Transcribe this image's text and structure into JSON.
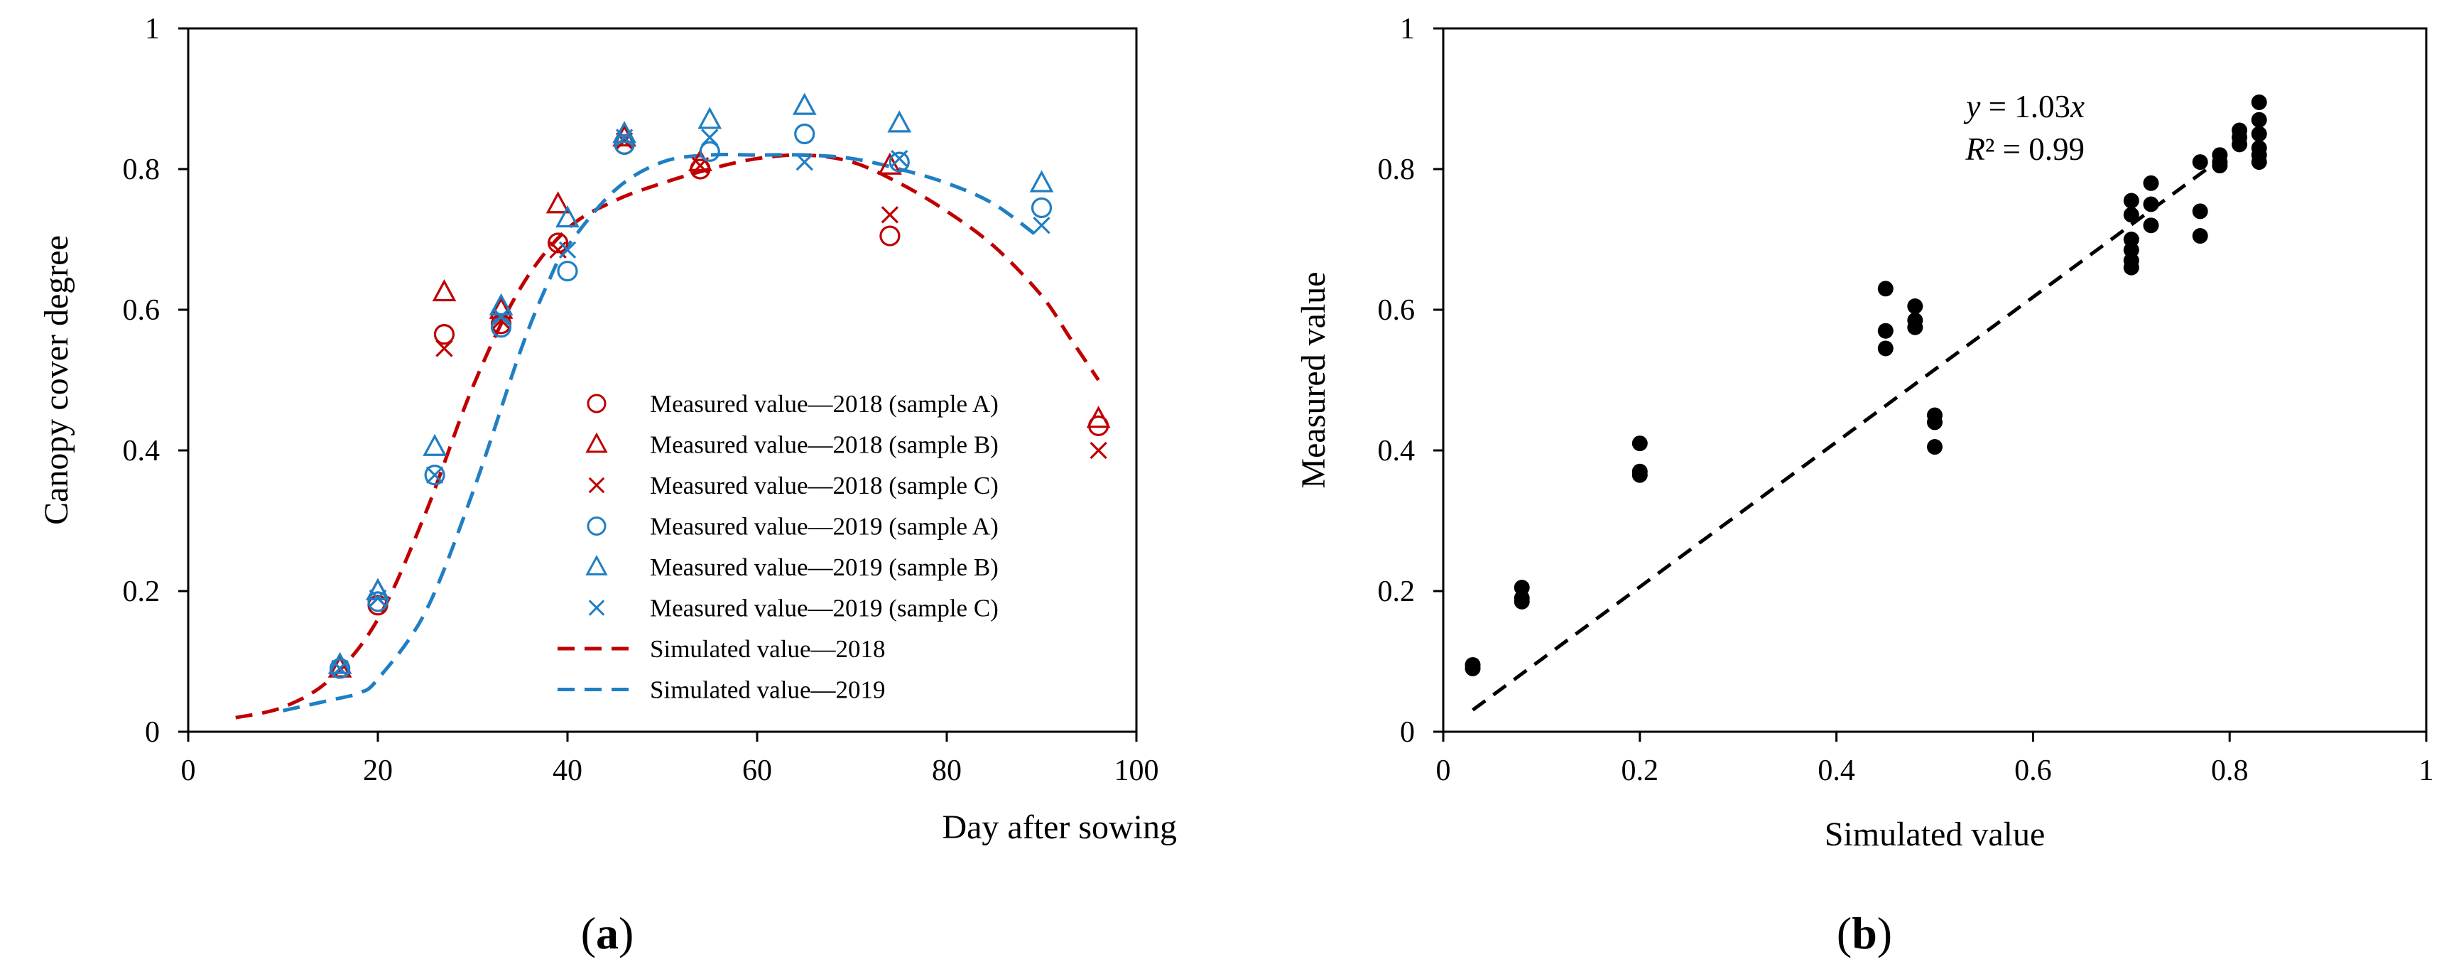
{
  "chart_data": [
    {
      "panel_label": "(a)",
      "type": "scatter",
      "xlabel": "Day after sowing",
      "ylabel": "Canopy cover degree",
      "xlim": [
        0,
        100
      ],
      "ylim": [
        0,
        1
      ],
      "x_ticks": [
        0,
        20,
        40,
        60,
        80,
        100
      ],
      "x_tick_labels": [
        "0",
        "20",
        "40",
        "60",
        "80",
        "100"
      ],
      "y_ticks": [
        0,
        0.2,
        0.4,
        0.6,
        0.8,
        1
      ],
      "y_tick_labels": [
        "0",
        "0.2",
        "0.4",
        "0.6",
        "0.8",
        "1"
      ],
      "legend_position": "center-right",
      "colors": {
        "y2018": "#c00000",
        "y2019": "#1f7fc4"
      },
      "series": [
        {
          "name": "Measured value—2018 (sample A)",
          "marker": "circle",
          "color": "#c00000",
          "x": [
            16,
            20,
            27,
            33,
            39,
            46,
            54,
            74,
            96
          ],
          "y": [
            0.09,
            0.18,
            0.565,
            0.58,
            0.695,
            0.835,
            0.8,
            0.705,
            0.435
          ]
        },
        {
          "name": "Measured value—2018 (sample B)",
          "marker": "triangle",
          "color": "#c00000",
          "x": [
            16,
            20,
            27,
            33,
            39,
            46,
            54,
            74,
            96
          ],
          "y": [
            0.09,
            0.2,
            0.625,
            0.6,
            0.75,
            0.845,
            0.81,
            0.805,
            0.445
          ]
        },
        {
          "name": "Measured value—2018 (sample C)",
          "marker": "cross",
          "color": "#c00000",
          "x": [
            16,
            20,
            27,
            33,
            39,
            46,
            54,
            74,
            96
          ],
          "y": [
            0.09,
            0.19,
            0.545,
            0.585,
            0.685,
            0.84,
            0.805,
            0.735,
            0.4
          ]
        },
        {
          "name": "Measured value—2019 (sample A)",
          "marker": "circle",
          "color": "#1f7fc4",
          "x": [
            16,
            20,
            26,
            33,
            40,
            46,
            55,
            65,
            75,
            90
          ],
          "y": [
            0.09,
            0.185,
            0.365,
            0.575,
            0.655,
            0.835,
            0.825,
            0.85,
            0.81,
            0.745
          ]
        },
        {
          "name": "Measured value—2019 (sample B)",
          "marker": "triangle",
          "color": "#1f7fc4",
          "x": [
            16,
            20,
            26,
            33,
            40,
            46,
            55,
            65,
            75,
            90
          ],
          "y": [
            0.095,
            0.2,
            0.405,
            0.605,
            0.73,
            0.85,
            0.87,
            0.89,
            0.865,
            0.78
          ]
        },
        {
          "name": "Measured value—2019 (sample C)",
          "marker": "cross",
          "color": "#1f7fc4",
          "x": [
            16,
            20,
            26,
            33,
            40,
            46,
            55,
            65,
            75,
            90
          ],
          "y": [
            0.09,
            0.19,
            0.365,
            0.59,
            0.685,
            0.845,
            0.845,
            0.81,
            0.815,
            0.72
          ]
        },
        {
          "name": "Simulated value—2018",
          "marker": "dashed-line",
          "color": "#c00000",
          "x": [
            5,
            10,
            15,
            20,
            25,
            30,
            35,
            40,
            45,
            50,
            55,
            60,
            65,
            70,
            75,
            80,
            85,
            90,
            93,
            96
          ],
          "y": [
            0.02,
            0.035,
            0.075,
            0.16,
            0.31,
            0.49,
            0.63,
            0.715,
            0.755,
            0.78,
            0.8,
            0.815,
            0.82,
            0.81,
            0.78,
            0.74,
            0.69,
            0.62,
            0.56,
            0.5
          ]
        },
        {
          "name": "Simulated value—2019",
          "marker": "dashed-line",
          "color": "#1f7fc4",
          "x": [
            10,
            15,
            18,
            20,
            25,
            30,
            35,
            38,
            40,
            45,
            50,
            55,
            60,
            65,
            70,
            75,
            80,
            85,
            90
          ],
          "y": [
            0.03,
            0.045,
            0.055,
            0.075,
            0.17,
            0.34,
            0.54,
            0.64,
            0.69,
            0.77,
            0.81,
            0.82,
            0.82,
            0.82,
            0.815,
            0.8,
            0.78,
            0.75,
            0.7
          ]
        }
      ]
    },
    {
      "panel_label": "(b)",
      "type": "scatter",
      "xlabel": "Simulated value",
      "ylabel": "Measured value",
      "xlim": [
        0,
        1
      ],
      "ylim": [
        0,
        1
      ],
      "x_ticks": [
        0,
        0.2,
        0.4,
        0.6,
        0.8,
        1
      ],
      "x_tick_labels": [
        "0",
        "0.2",
        "0.4",
        "0.6",
        "0.8",
        "1"
      ],
      "y_ticks": [
        0,
        0.2,
        0.4,
        0.6,
        0.8,
        1
      ],
      "y_tick_labels": [
        "0",
        "0.2",
        "0.4",
        "0.6",
        "0.8",
        "1"
      ],
      "annotation": {
        "equation_prefix": "y",
        "equation_rest": " = 1.03",
        "equation_suffix": "x",
        "r2_prefix": "R",
        "r2_rest": "² = 0.99"
      },
      "fit_line": {
        "slope": 1.03,
        "x_range": [
          0.03,
          0.81
        ],
        "style": "dashed",
        "color": "#000000"
      },
      "points": {
        "color": "#000000",
        "x": [
          0.03,
          0.03,
          0.08,
          0.08,
          0.08,
          0.2,
          0.2,
          0.2,
          0.45,
          0.45,
          0.45,
          0.48,
          0.48,
          0.48,
          0.5,
          0.5,
          0.5,
          0.7,
          0.7,
          0.7,
          0.7,
          0.7,
          0.7,
          0.72,
          0.72,
          0.72,
          0.77,
          0.77,
          0.77,
          0.79,
          0.79,
          0.79,
          0.81,
          0.81,
          0.81,
          0.83,
          0.83,
          0.83,
          0.83,
          0.83,
          0.83
        ],
        "y": [
          0.09,
          0.095,
          0.185,
          0.19,
          0.205,
          0.365,
          0.37,
          0.41,
          0.545,
          0.57,
          0.63,
          0.575,
          0.585,
          0.605,
          0.405,
          0.44,
          0.45,
          0.66,
          0.67,
          0.685,
          0.7,
          0.735,
          0.755,
          0.72,
          0.75,
          0.78,
          0.705,
          0.74,
          0.81,
          0.805,
          0.81,
          0.82,
          0.835,
          0.845,
          0.855,
          0.81,
          0.82,
          0.83,
          0.85,
          0.87,
          0.895
        ]
      }
    }
  ]
}
